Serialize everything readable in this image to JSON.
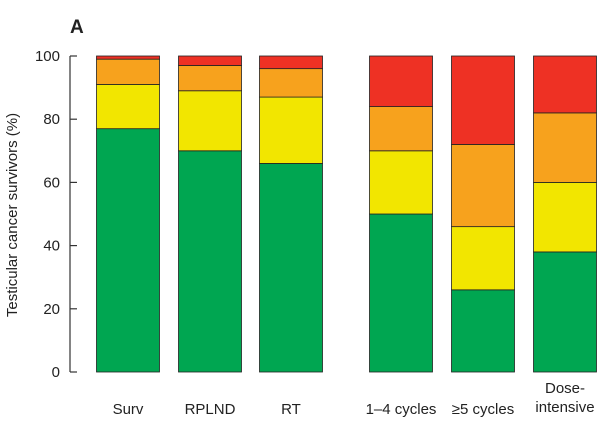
{
  "chart_data": {
    "type": "bar",
    "stacked": true,
    "panel_label": "A",
    "ylabel": "Testicular cancer survivors (%)",
    "ylim": [
      0,
      100
    ],
    "yticks": [
      0,
      20,
      40,
      60,
      80,
      100
    ],
    "grid": false,
    "categories": [
      "Surv",
      "RPLND",
      "RT",
      "1–4 cycles",
      "≥5 cycles",
      "Dose-intensive"
    ],
    "category_label_lines": [
      [
        "Surv"
      ],
      [
        "RPLND"
      ],
      [
        "RT"
      ],
      [
        "1–4 cycles"
      ],
      [
        "≥5 cycles"
      ],
      [
        "Dose-",
        "intensive"
      ]
    ],
    "groups": [
      [
        0,
        1,
        2
      ],
      [
        3,
        4,
        5
      ]
    ],
    "series": [
      {
        "color": "#00a651",
        "values": [
          77,
          70,
          66,
          50,
          26,
          38
        ]
      },
      {
        "color": "#f2e600",
        "values": [
          14,
          19,
          21,
          20,
          20,
          22
        ]
      },
      {
        "color": "#f7a21d",
        "values": [
          8,
          8,
          9,
          14,
          26,
          22
        ]
      },
      {
        "color": "#ee3124",
        "values": [
          1,
          3,
          4,
          16,
          28,
          18
        ]
      }
    ]
  }
}
